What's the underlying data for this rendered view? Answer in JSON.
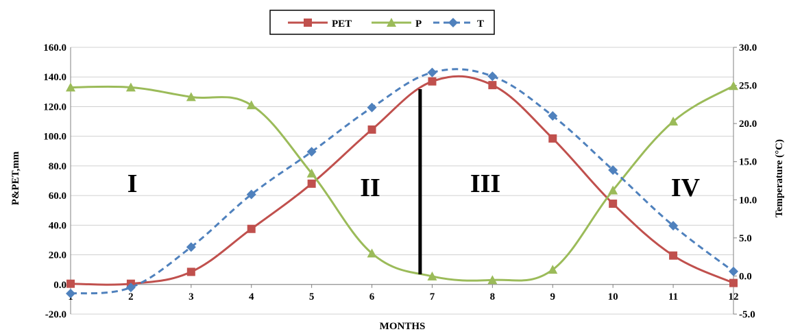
{
  "chart_data": {
    "type": "line",
    "x": [
      1,
      2,
      3,
      4,
      5,
      6,
      7,
      8,
      9,
      10,
      11,
      12
    ],
    "xlabel": "MONTHS",
    "ylabel_left": "P&PET,mm",
    "ylabel_right": "Temperature (°C)",
    "ylim_left": [
      -20,
      160
    ],
    "ylim_right": [
      -5,
      30
    ],
    "xlim": [
      1,
      12
    ],
    "left_ticks": [
      "-20.0",
      "0.0",
      "20.0",
      "40.0",
      "60.0",
      "80.0",
      "100.0",
      "120.0",
      "140.0",
      "160.0"
    ],
    "right_ticks": [
      "-5.0",
      "0.0",
      "5.0",
      "10.0",
      "15.0",
      "20.0",
      "25.0",
      "30.0"
    ],
    "x_ticks": [
      "1",
      "2",
      "3",
      "4",
      "5",
      "6",
      "7",
      "8",
      "9",
      "10",
      "11",
      "12"
    ],
    "grid": true,
    "legend_position": "top-center",
    "series": [
      {
        "name": "PET",
        "axis": "left",
        "color": "#C0504D",
        "marker": "square",
        "dash": false,
        "values": [
          0.5,
          0.5,
          8.5,
          37.5,
          68.0,
          104.5,
          137.0,
          134.5,
          98.5,
          54.5,
          19.5,
          1.0
        ]
      },
      {
        "name": "P",
        "axis": "left",
        "color": "#9BBB59",
        "marker": "triangle",
        "dash": false,
        "values": [
          133.0,
          133.0,
          126.5,
          121.0,
          75.0,
          21.0,
          5.5,
          3.0,
          10.0,
          63.5,
          110.0,
          134.0
        ]
      },
      {
        "name": "T",
        "axis": "right",
        "color": "#4F81BD",
        "marker": "diamond",
        "dash": true,
        "values": [
          -2.3,
          -1.5,
          3.8,
          10.7,
          16.3,
          22.1,
          26.7,
          26.2,
          21.0,
          13.9,
          6.6,
          0.6
        ]
      }
    ],
    "regions": [
      "I",
      "II",
      "III",
      "IV"
    ],
    "divider_x": 6.8
  }
}
